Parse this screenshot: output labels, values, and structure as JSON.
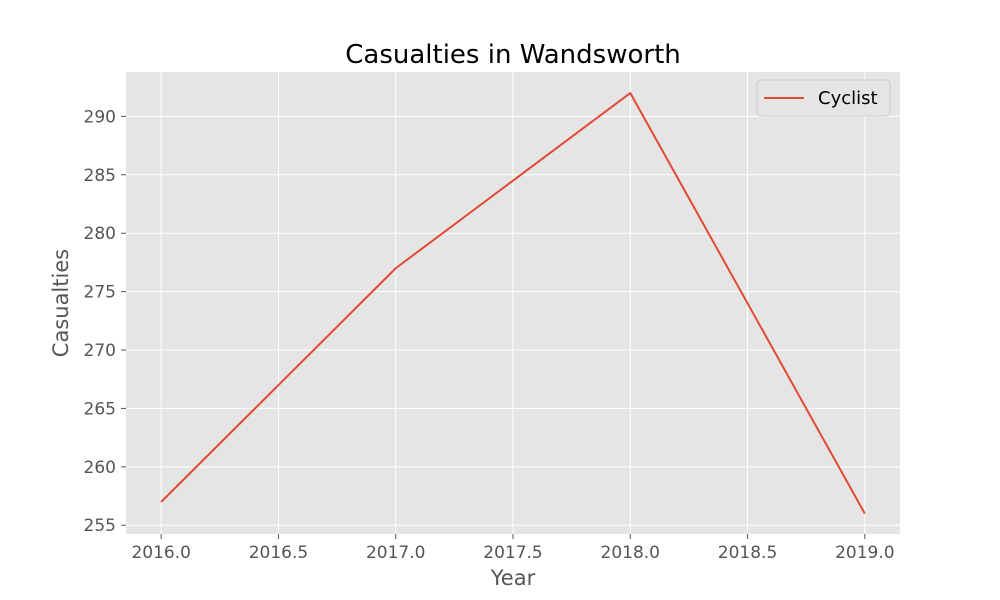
{
  "chart_data": {
    "type": "line",
    "title": "Casualties in Wandsworth",
    "xlabel": "Year",
    "ylabel": "Casualties",
    "x": [
      2016,
      2017,
      2018,
      2019
    ],
    "series": [
      {
        "name": "Cyclist",
        "values": [
          257,
          277,
          292,
          256
        ],
        "color": "#E24A33"
      }
    ],
    "xticks": [
      "2016.0",
      "2016.5",
      "2017.0",
      "2017.5",
      "2018.0",
      "2018.5",
      "2019.0"
    ],
    "xtick_values": [
      2016.0,
      2016.5,
      2017.0,
      2017.5,
      2018.0,
      2018.5,
      2019.0
    ],
    "yticks": [
      "255",
      "260",
      "265",
      "270",
      "275",
      "280",
      "285",
      "290"
    ],
    "ytick_values": [
      255,
      260,
      265,
      270,
      275,
      280,
      285,
      290
    ],
    "xlim": [
      2015.85,
      2019.15
    ],
    "ylim": [
      254.25,
      293.8
    ],
    "grid": true,
    "legend": "top-right",
    "background": "#E5E5E5",
    "grid_color": "#FFFFFF"
  }
}
